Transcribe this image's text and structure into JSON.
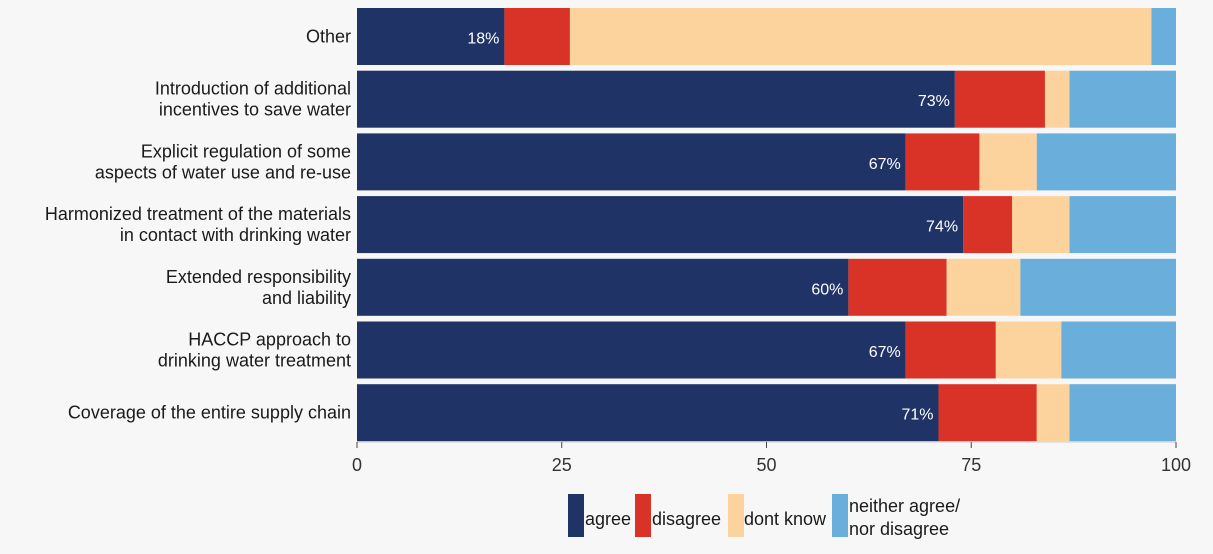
{
  "chart_data": {
    "type": "bar",
    "stacked": true,
    "orientation": "horizontal",
    "title": "",
    "xlabel": "",
    "ylabel": "",
    "xlim": [
      0,
      100
    ],
    "x_ticks": [
      0,
      25,
      50,
      75,
      100
    ],
    "grid": false,
    "legend_position": "bottom",
    "categories": [
      "Other",
      "Introduction of additional\nincentives to save water",
      "Explicit regulation of some\naspects of water use and re-use",
      "Harmonized treatment of the materials\nin contact with drinking water",
      "Extended responsibility\nand liability",
      "HACCP approach to\ndrinking water treatment",
      "Coverage of the entire supply chain"
    ],
    "series": [
      {
        "name": "agree",
        "color": "#1f3366",
        "values": [
          18,
          73,
          67,
          74,
          60,
          67,
          71
        ]
      },
      {
        "name": "disagree",
        "color": "#d93327",
        "values": [
          8,
          11,
          9,
          6,
          12,
          11,
          12
        ]
      },
      {
        "name": "dont know",
        "color": "#fdd39d",
        "values": [
          71,
          3,
          7,
          7,
          9,
          8,
          4
        ]
      },
      {
        "name": "neither agree/\nnor disagree",
        "color": "#6aaedb",
        "values": [
          3,
          13,
          17,
          13,
          19,
          14,
          13
        ]
      }
    ],
    "data_labels": [
      "18%",
      "73%",
      "67%",
      "74%",
      "60%",
      "67%",
      "71%"
    ]
  }
}
